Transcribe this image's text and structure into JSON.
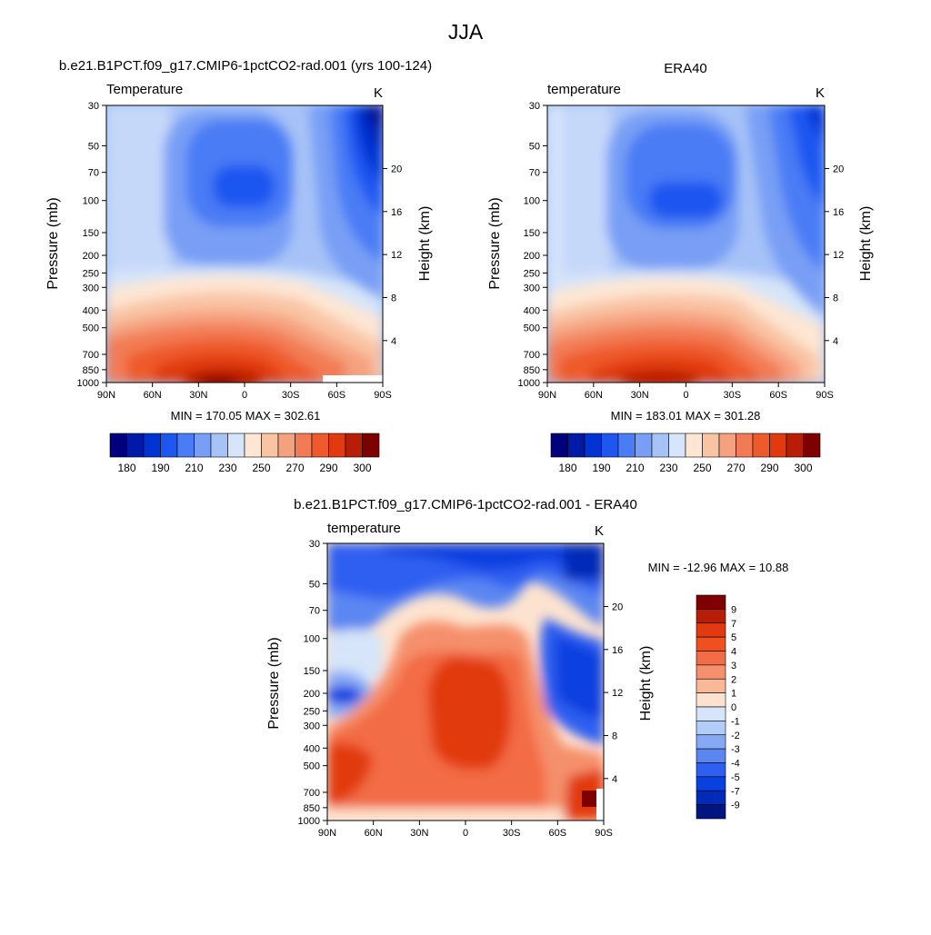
{
  "figure_title": "JJA",
  "chart_data": [
    {
      "type": "heatmap",
      "title": "b.e21.B1PCT.f09_g17.CMIP6-1pctCO2-rad.001 (yrs 100-124)",
      "left_label": "Temperature",
      "right_label": "K",
      "ylabel": "Pressure (mb)",
      "y2label": "Height (km)",
      "xticks": [
        "90N",
        "60N",
        "30N",
        "0",
        "30S",
        "60S",
        "90S"
      ],
      "yticks": [
        "30",
        "50",
        "70",
        "100",
        "150",
        "200",
        "250",
        "300",
        "400",
        "500",
        "700",
        "850",
        "1000"
      ],
      "y2ticks": [
        "20",
        "16",
        "12",
        "8",
        "4"
      ],
      "minmax_text": "MIN = 170.05  MAX = 302.61",
      "min": 170.05,
      "max": 302.61,
      "colorbar": {
        "orientation": "horizontal",
        "labels": [
          "180",
          "190",
          "210",
          "230",
          "250",
          "270",
          "290",
          "300"
        ],
        "colors": [
          "#00007f",
          "#001aa8",
          "#0033d1",
          "#1e56f0",
          "#4a7cf5",
          "#789ff5",
          "#a7c2f7",
          "#d6e5f9",
          "#fde6d3",
          "#f9c4a4",
          "#f5a17f",
          "#f27b55",
          "#ee5a2c",
          "#e13a10",
          "#b81e06",
          "#7f0000"
        ]
      }
    },
    {
      "type": "heatmap",
      "title": "ERA40",
      "left_label": "temperature",
      "right_label": "K",
      "ylabel": "Pressure (mb)",
      "y2label": "Height (km)",
      "xticks": [
        "90N",
        "60N",
        "30N",
        "0",
        "30S",
        "60S",
        "90S"
      ],
      "yticks": [
        "30",
        "50",
        "70",
        "100",
        "150",
        "200",
        "250",
        "300",
        "400",
        "500",
        "700",
        "850",
        "1000"
      ],
      "y2ticks": [
        "20",
        "16",
        "12",
        "8",
        "4"
      ],
      "minmax_text": "MIN = 183.01  MAX = 301.28",
      "min": 183.01,
      "max": 301.28,
      "colorbar": {
        "orientation": "horizontal",
        "labels": [
          "180",
          "190",
          "210",
          "230",
          "250",
          "270",
          "290",
          "300"
        ],
        "colors": [
          "#00007f",
          "#001aa8",
          "#0033d1",
          "#1e56f0",
          "#4a7cf5",
          "#789ff5",
          "#a7c2f7",
          "#d6e5f9",
          "#fde6d3",
          "#f9c4a4",
          "#f5a17f",
          "#f27b55",
          "#ee5a2c",
          "#e13a10",
          "#b81e06",
          "#7f0000"
        ]
      }
    },
    {
      "type": "heatmap",
      "title": "b.e21.B1PCT.f09_g17.CMIP6-1pctCO2-rad.001 - ERA40",
      "left_label": "temperature",
      "right_label": "K",
      "ylabel": "Pressure (mb)",
      "y2label": "Height (km)",
      "xticks": [
        "90N",
        "60N",
        "30N",
        "0",
        "30S",
        "60S",
        "90S"
      ],
      "yticks": [
        "30",
        "50",
        "70",
        "100",
        "150",
        "200",
        "250",
        "300",
        "400",
        "500",
        "700",
        "850",
        "1000"
      ],
      "y2ticks": [
        "20",
        "16",
        "12",
        "8",
        "4"
      ],
      "minmax_text": "MIN = -12.96  MAX =  10.88",
      "min": -12.96,
      "max": 10.88,
      "colorbar": {
        "orientation": "vertical",
        "labels": [
          "9",
          "7",
          "5",
          "4",
          "3",
          "2",
          "1",
          "0",
          "-1",
          "-2",
          "-3",
          "-4",
          "-5",
          "-7",
          "-9"
        ],
        "colors": [
          "#7f0000",
          "#b81e06",
          "#e13a10",
          "#f04f20",
          "#f26c45",
          "#f5906c",
          "#f9b898",
          "#fde3cf",
          "#d6e5f9",
          "#b3cdf8",
          "#87a9f5",
          "#5b86f2",
          "#2f5ff0",
          "#0a3fe0",
          "#002ab8",
          "#00157f"
        ]
      }
    }
  ]
}
